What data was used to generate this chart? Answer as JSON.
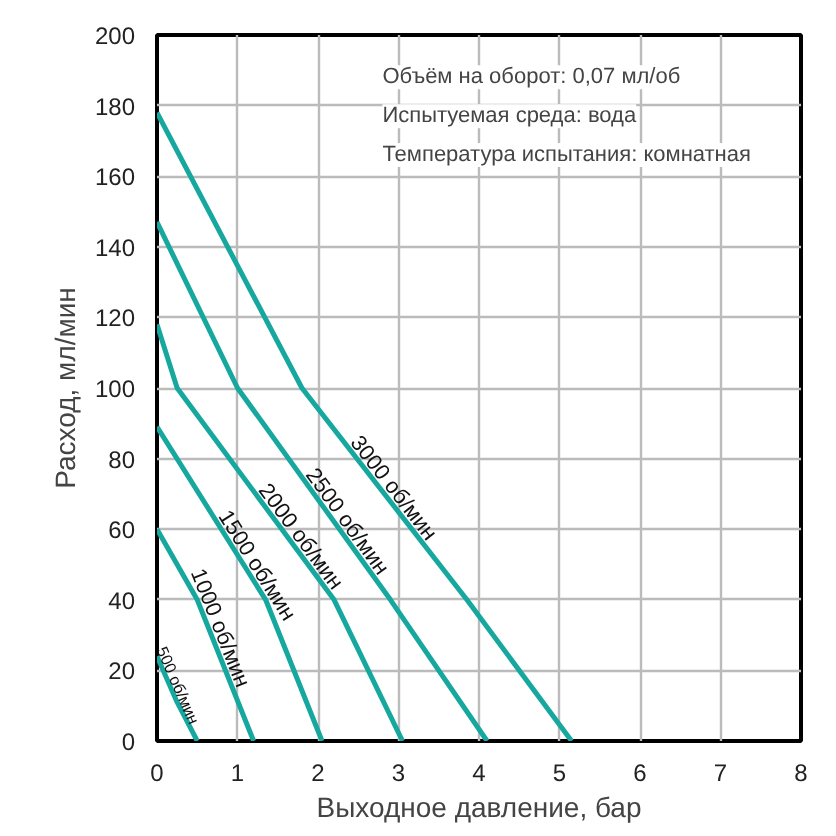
{
  "chart_data": {
    "type": "line",
    "xlabel": "Выходное давление, бар",
    "ylabel": "Расход, мл/мин",
    "xlim": [
      0,
      8
    ],
    "ylim": [
      0,
      200
    ],
    "xticks": [
      0,
      1,
      2,
      3,
      4,
      5,
      6,
      7,
      8
    ],
    "yticks": [
      0,
      20,
      40,
      60,
      80,
      100,
      120,
      140,
      160,
      180,
      200
    ],
    "grid": true,
    "marker": "none",
    "line_style": "solid",
    "annotations": [
      "Объём на оборот: 0,07 мл/об",
      "Испытуемая среда: вода",
      "Температура испытания: комнатная"
    ],
    "series": [
      {
        "name": "500 об/мин",
        "color": "#16a89e",
        "x": [
          0,
          0.25,
          0.5
        ],
        "values": [
          24,
          11,
          0
        ]
      },
      {
        "name": "1000 об/мин",
        "color": "#16a89e",
        "x": [
          0,
          0.5,
          1.2
        ],
        "values": [
          60,
          40,
          0
        ]
      },
      {
        "name": "1500 об/мин",
        "color": "#16a89e",
        "x": [
          0,
          1.35,
          2.05
        ],
        "values": [
          89,
          40,
          0
        ]
      },
      {
        "name": "2000 об/мин",
        "color": "#16a89e",
        "x": [
          0,
          0.25,
          2.2,
          3.05
        ],
        "values": [
          118,
          100,
          40,
          0
        ]
      },
      {
        "name": "2500 об/мин",
        "color": "#16a89e",
        "x": [
          0,
          1.0,
          2.9,
          4.1
        ],
        "values": [
          147,
          100,
          40,
          0
        ]
      },
      {
        "name": "3000 об/мин",
        "color": "#16a89e",
        "x": [
          0,
          1.8,
          3.85,
          5.15
        ],
        "values": [
          178,
          100,
          40,
          0
        ]
      }
    ]
  }
}
